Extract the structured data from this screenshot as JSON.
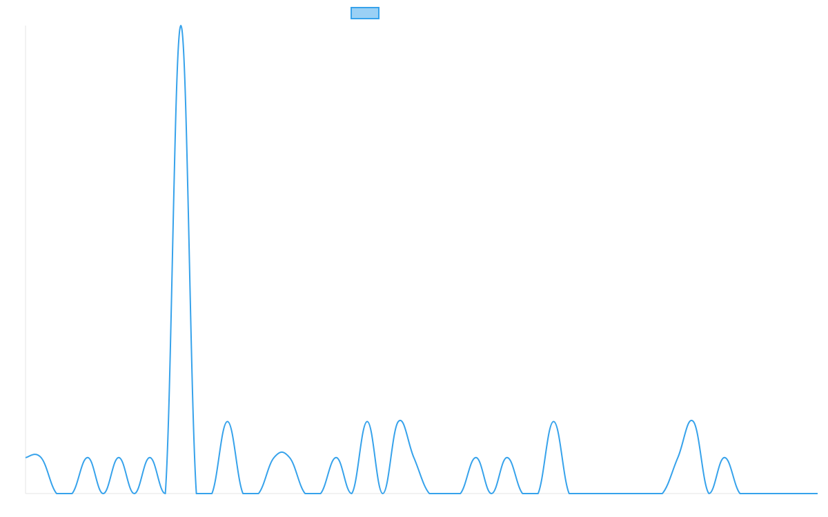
{
  "chart_data": {
    "type": "line",
    "title": "",
    "xlabel": "",
    "ylabel": "",
    "legend": {
      "position": "top",
      "visible": true
    },
    "grid": false,
    "ylim": [
      0,
      13
    ],
    "x": [
      0,
      1,
      2,
      3,
      4,
      5,
      6,
      7,
      8,
      9,
      10,
      11,
      12,
      13,
      14,
      15,
      16,
      17,
      18,
      19,
      20,
      21,
      22,
      23,
      24,
      25,
      26,
      27,
      28,
      29,
      30,
      31,
      32,
      33,
      34,
      35,
      36,
      37,
      38,
      39,
      40,
      41,
      42,
      43,
      44,
      45,
      46,
      47,
      48,
      49,
      50,
      51
    ],
    "series": [
      {
        "color": "#36a2eb",
        "fill": "#9ad0f5",
        "values": [
          1,
          1,
          0,
          0,
          1,
          0,
          1,
          0,
          1,
          0,
          13,
          0,
          0,
          2,
          0,
          0,
          1,
          1,
          0,
          0,
          1,
          0,
          2,
          0,
          2,
          1,
          0,
          0,
          0,
          1,
          0,
          1,
          0,
          0,
          2,
          0,
          0,
          0,
          0,
          0,
          0,
          0,
          1,
          2,
          0,
          1,
          0,
          0,
          0,
          0,
          0,
          0
        ]
      }
    ]
  }
}
